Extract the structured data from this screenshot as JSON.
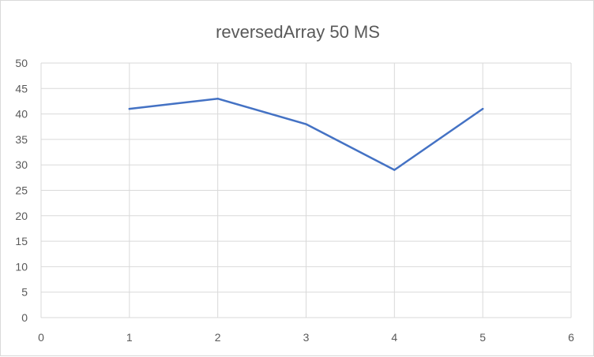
{
  "chart_data": {
    "type": "scatter",
    "title": "reversedArray 50 MS",
    "xlabel": "",
    "ylabel": "",
    "xlim": [
      0,
      6
    ],
    "ylim": [
      0,
      50
    ],
    "x_ticks": [
      0,
      1,
      2,
      3,
      4,
      5,
      6
    ],
    "y_ticks": [
      0,
      5,
      10,
      15,
      20,
      25,
      30,
      35,
      40,
      45,
      50
    ],
    "grid": true,
    "legend": "none",
    "series": [
      {
        "x": [
          1,
          2,
          3,
          4,
          5
        ],
        "y": [
          41,
          43,
          38,
          29,
          41
        ],
        "color": "#4472c4",
        "style": "line"
      }
    ]
  }
}
